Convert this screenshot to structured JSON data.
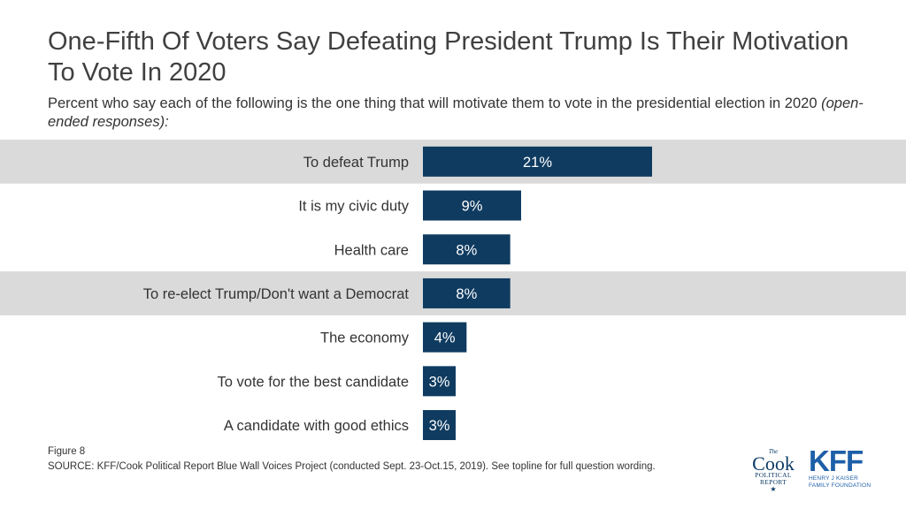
{
  "title": "One-Fifth Of Voters Say Defeating President Trump Is Their Motivation To Vote In 2020",
  "subtitle": {
    "main": "Percent who say each of the following is the one thing that will motivate them to vote in the presidential election in 2020 ",
    "note": "(open-ended responses):"
  },
  "figure_label": "Figure 8",
  "source": "SOURCE: KFF/Cook Political Report Blue Wall Voices Project (conducted Sept. 23-Oct.15, 2019). See topline for full question wording.",
  "logos": {
    "cook": {
      "the": "The",
      "name": "Cook",
      "line1": "POLITICAL",
      "line2": "REPORT",
      "star": "★"
    },
    "kff": {
      "name": "KFF",
      "line1": "HENRY J KAISER",
      "line2": "FAMILY FOUNDATION"
    }
  },
  "colors": {
    "bar": "#0f3b60",
    "highlight_band": "#dadada",
    "bar_label": "#ffffff",
    "category_text": "#333333"
  },
  "chart_data": {
    "type": "bar",
    "orientation": "horizontal",
    "categories": [
      "To defeat Trump",
      "It is my civic duty",
      "Health care",
      "To re-elect Trump/Don't want a Democrat",
      "The economy",
      "To vote for the best candidate",
      "A candidate with good ethics"
    ],
    "values": [
      21,
      9,
      8,
      8,
      4,
      3,
      3
    ],
    "data_labels": [
      "21%",
      "9%",
      "8%",
      "8%",
      "4%",
      "3%",
      "3%"
    ],
    "highlighted": [
      true,
      false,
      false,
      true,
      false,
      false,
      false
    ],
    "xlim": [
      0,
      21
    ],
    "unit": "%"
  }
}
